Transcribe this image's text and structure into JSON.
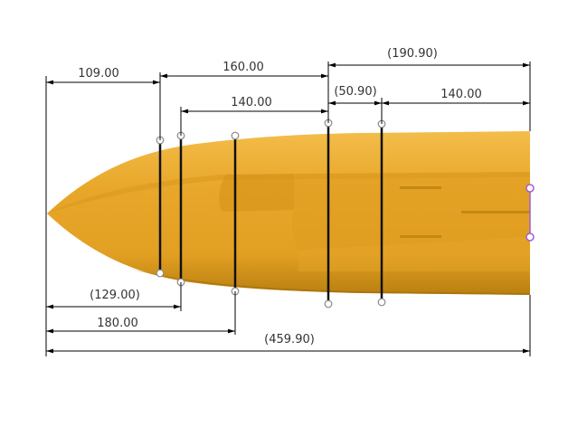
{
  "dimensions": {
    "d109": "109.00",
    "d160": "160.00",
    "d190_90": "(190.90)",
    "d50_90": "(50.90)",
    "d140_top": "140.00",
    "d140_right": "140.00",
    "d129": "(129.00)",
    "d180": "180.00",
    "d459_90": "(459.90)"
  },
  "colors": {
    "hull": "#e8a72a",
    "hull_dark": "#c98d14",
    "hull_light": "#f0b844",
    "dimension_line": "#000000",
    "selection": "#a05fd6"
  }
}
